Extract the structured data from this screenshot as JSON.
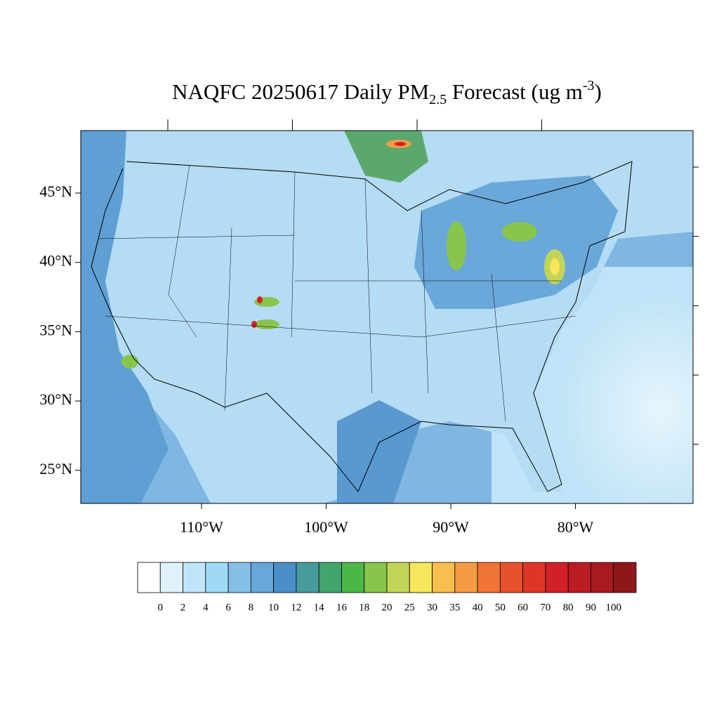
{
  "chart_data": {
    "type": "map",
    "title": {
      "main": "NAQFC 20250617 Daily PM",
      "sub": "2.5",
      "mid": " Forecast (ug m",
      "sup": "-3",
      "end": ")"
    },
    "yticks": [
      {
        "value": 45,
        "label": "45°N"
      },
      {
        "value": 40,
        "label": "40°N"
      },
      {
        "value": 35,
        "label": "35°N"
      },
      {
        "value": 30,
        "label": "30°N"
      },
      {
        "value": 25,
        "label": "25°N"
      }
    ],
    "xticks": [
      {
        "value": -110,
        "label": "110°W"
      },
      {
        "value": -100,
        "label": "100°W"
      },
      {
        "value": -90,
        "label": "90°W"
      },
      {
        "value": -80,
        "label": "80°W"
      }
    ],
    "levels": [
      0,
      2,
      4,
      6,
      8,
      10,
      12,
      14,
      16,
      18,
      20,
      25,
      30,
      35,
      40,
      50,
      60,
      70,
      80,
      90,
      100
    ],
    "colors": [
      "#ffffff",
      "#dff2fb",
      "#bfe6f8",
      "#9fd9f5",
      "#84c0e6",
      "#67a7d9",
      "#4b8ec8",
      "#479b9d",
      "#43a56e",
      "#4cb748",
      "#88c54d",
      "#c3d558",
      "#f7e55c",
      "#f7bf4e",
      "#f49b41",
      "#f07534",
      "#e8502e",
      "#df3529",
      "#d12128",
      "#bb1c24",
      "#a81a20",
      "#8f161a"
    ]
  }
}
